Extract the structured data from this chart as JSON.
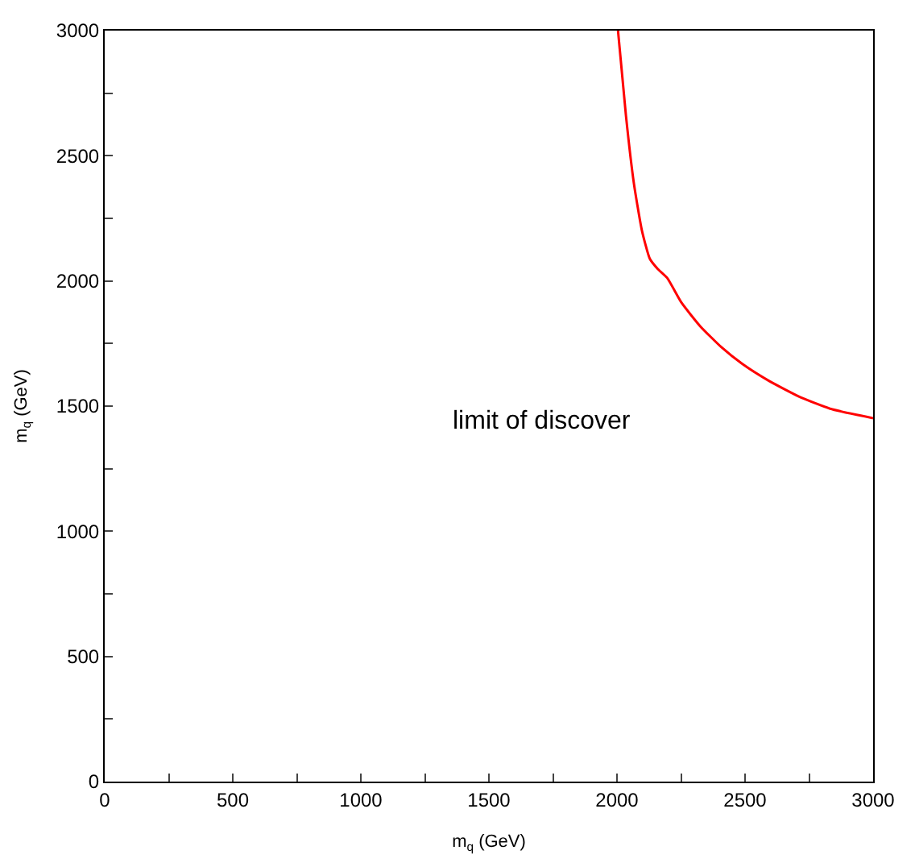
{
  "chart_data": {
    "type": "line",
    "xlabel": "m$_{q}$ (GeV)",
    "ylabel": "m$_{q}$ (GeV)",
    "x": [
      2004,
      2035,
      2066,
      2097,
      2128,
      2159,
      2196,
      2252,
      2325,
      2407,
      2490,
      2593,
      2717,
      2841,
      3000
    ],
    "series": [
      {
        "color": "#ff0000",
        "values": [
          3000,
          2660,
          2390,
          2203,
          2089,
          2048,
          2012,
          1913,
          1819,
          1736,
          1668,
          1601,
          1535,
          1487,
          1452
        ]
      }
    ],
    "xlim": [
      0,
      3000
    ],
    "ylim": [
      0,
      3000
    ],
    "xticks": [
      0,
      {
        "value": 250,
        "label": null
      },
      500,
      {
        "value": 750,
        "label": null
      },
      1000,
      {
        "value": 1250,
        "label": null
      },
      1500,
      {
        "value": 1750,
        "label": null
      },
      2000,
      {
        "value": 2250,
        "label": null
      },
      2500,
      {
        "value": 2750,
        "label": null
      },
      3000
    ],
    "yticks": [
      0,
      {
        "value": 250,
        "label": null
      },
      500,
      {
        "value": 750,
        "label": null
      },
      1000,
      {
        "value": 1250,
        "label": null
      },
      1500,
      {
        "value": 1750,
        "label": null
      },
      2000,
      {
        "value": 2250,
        "label": null
      },
      2500,
      {
        "value": 2750,
        "label": null
      },
      3000
    ],
    "annotations": [
      "limit of discover"
    ],
    "marker": "none",
    "line_style": "solid"
  }
}
